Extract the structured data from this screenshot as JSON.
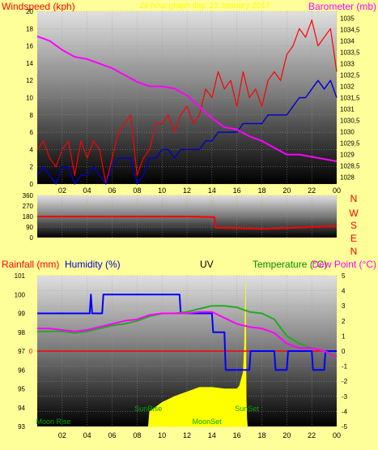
{
  "colors": {
    "background": "#ffff99",
    "wind_speed": "#ff0000",
    "wind_avg": "#0000cc",
    "barometer": "#ff00ff",
    "direction": "#ff0000",
    "humidity": "#0000ff",
    "temperature": "#22aa22",
    "dew_point": "#ff00ff",
    "uv": "#ffff00",
    "rainfall": "#ff0000",
    "label_green": "#00aa00",
    "title_text": "#ffff00"
  },
  "header_panel1": {
    "windspeed_label": "Windspeed (kph)",
    "title": "24 hour graph day: 21 January 2017",
    "barometer_label": "Barometer (mb)"
  },
  "header_panel3": {
    "rainfall_label": "Rainfall (mm)",
    "humidity_label": "Humidity (%)",
    "uv_label": "UV",
    "temperature_label": "Temperature (°C)",
    "dewpoint_label": "Dew Point (°C)"
  },
  "compass": [
    "N",
    "W",
    "S",
    "E",
    "N"
  ],
  "events": {
    "moon_rise": "Moon Rise",
    "sun_rise": "SunRise",
    "moon_set": "MoonSet",
    "sun_set": "SunSet"
  },
  "chart_data": [
    {
      "id": "wind-barometer",
      "type": "line",
      "x_tick_labels": [
        "02",
        "04",
        "06",
        "08",
        "10",
        "12",
        "14",
        "16",
        "18",
        "20",
        "22",
        "00"
      ],
      "x_hours": [
        2,
        4,
        6,
        8,
        10,
        12,
        14,
        16,
        18,
        20,
        22,
        24
      ],
      "x_range": [
        0,
        24
      ],
      "y_left": {
        "label": "Windspeed (kph)",
        "range": [
          0,
          20
        ],
        "ticks": [
          0,
          2,
          4,
          6,
          8,
          10,
          12,
          14,
          16,
          18,
          20
        ]
      },
      "y_right": {
        "label": "Barometer (mb)",
        "range": [
          1027.7,
          1035.3
        ],
        "ticks": [
          "1028",
          "1028,5",
          "1029",
          "1029,5",
          "1030",
          "1030,5",
          "1031",
          "1031,5",
          "1032",
          "1032,5",
          "1033",
          "1033,5",
          "1034",
          "1034,5",
          "1035"
        ]
      },
      "barometer": {
        "x": [
          0,
          1,
          2,
          3,
          4,
          5,
          6,
          7,
          8,
          9,
          10,
          11,
          12,
          13,
          14,
          15,
          16,
          17,
          18,
          19,
          20,
          21,
          22,
          23,
          24
        ],
        "y": [
          1034.2,
          1034.0,
          1033.6,
          1033.3,
          1033.2,
          1033.0,
          1032.8,
          1032.5,
          1032.2,
          1032.0,
          1032.0,
          1031.9,
          1031.6,
          1031.1,
          1030.6,
          1030.2,
          1030.1,
          1029.8,
          1029.6,
          1029.3,
          1029.0,
          1029.0,
          1028.9,
          1028.8,
          1028.7
        ]
      },
      "wind_gust": {
        "x": [
          0,
          0.5,
          1,
          1.5,
          2,
          2.5,
          3,
          3.5,
          4,
          4.5,
          5,
          5.5,
          6,
          6.5,
          7,
          7.5,
          8,
          8.5,
          9,
          9.5,
          10,
          10.5,
          11,
          11.5,
          12,
          12.5,
          13,
          13.5,
          14,
          14.5,
          15,
          15.5,
          16,
          16.5,
          17,
          17.5,
          18,
          18.5,
          19,
          19.5,
          20,
          20.5,
          21,
          21.5,
          22,
          22.5,
          23,
          23.5,
          24
        ],
        "y": [
          4,
          5,
          3,
          2,
          4,
          5,
          1,
          5,
          3,
          5,
          4,
          0,
          3,
          6,
          7,
          8,
          1,
          3,
          4,
          7,
          7,
          8,
          6,
          8,
          9,
          7,
          8,
          11,
          10,
          13,
          11,
          12,
          9,
          13,
          10,
          11,
          9,
          12,
          13,
          12,
          15,
          16,
          18,
          17,
          19,
          16,
          17,
          18,
          13
        ]
      },
      "wind_average": {
        "x": [
          0,
          0.5,
          1,
          1.5,
          2,
          2.5,
          3,
          3.5,
          4,
          4.5,
          5,
          5.5,
          6,
          6.5,
          7,
          7.5,
          8,
          8.5,
          9,
          9.5,
          10,
          10.5,
          11,
          11.5,
          12,
          12.5,
          13,
          13.5,
          14,
          14.5,
          15,
          15.5,
          16,
          16.5,
          17,
          17.5,
          18,
          18.5,
          19,
          19.5,
          20,
          20.5,
          21,
          21.5,
          22,
          22.5,
          23,
          23.5,
          24
        ],
        "y": [
          1,
          2,
          1,
          0,
          2,
          2,
          0,
          1,
          1,
          2,
          1,
          0,
          2,
          3,
          3,
          3,
          0,
          1,
          3,
          3,
          4,
          4,
          3,
          4,
          4,
          4,
          4,
          5,
          5,
          6,
          6,
          6,
          6,
          7,
          7,
          7,
          7,
          8,
          8,
          8,
          8,
          9,
          10,
          10,
          11,
          12,
          11,
          12,
          10
        ]
      }
    },
    {
      "id": "wind-direction",
      "type": "line",
      "x_tick_labels": [
        "02",
        "04",
        "06",
        "08",
        "10",
        "12",
        "14",
        "16",
        "18",
        "20",
        "22",
        "00"
      ],
      "x_range": [
        0,
        24
      ],
      "y_range": [
        0,
        360
      ],
      "y_ticks": [
        0,
        90,
        180,
        270,
        360
      ],
      "direction": {
        "x": [
          0,
          12,
          14.2,
          14.3,
          16,
          18,
          20,
          22,
          24
        ],
        "y": [
          180,
          180,
          175,
          85,
          80,
          75,
          80,
          90,
          100
        ]
      }
    },
    {
      "id": "humidity-temperature-uv",
      "type": "line",
      "x_tick_labels": [
        "02",
        "04",
        "06",
        "08",
        "10",
        "12",
        "14",
        "16",
        "18",
        "20",
        "22",
        "00"
      ],
      "x_range": [
        0,
        24
      ],
      "y_left": {
        "label": "Humidity (%)",
        "range": [
          93,
          101
        ],
        "ticks": [
          93,
          94,
          95,
          96,
          97,
          98,
          99,
          100,
          101
        ]
      },
      "y_right": {
        "label": "Temperature (°C)",
        "range": [
          -5,
          5
        ],
        "ticks": [
          -5,
          -4,
          -3,
          -2,
          -1,
          0,
          1,
          2,
          3,
          4,
          5
        ]
      },
      "rain_zero_label": "0",
      "humidity": {
        "x": [
          0,
          4.2,
          4.3,
          4.4,
          5.2,
          5.3,
          11.4,
          11.5,
          12,
          13,
          14,
          14.1,
          15,
          15.1,
          16,
          17,
          17.1,
          19,
          19.1,
          20,
          20.1,
          21,
          22,
          22.1,
          23,
          23.1,
          24
        ],
        "y": [
          99,
          99,
          100,
          99,
          99,
          100,
          100,
          99,
          99,
          99,
          99,
          98,
          98,
          96,
          96,
          96,
          97,
          97,
          96,
          96,
          97,
          97,
          97,
          96,
          96,
          97,
          97
        ]
      },
      "temperature": {
        "x": [
          0,
          1,
          2,
          3,
          4,
          5,
          6,
          7,
          8,
          9,
          10,
          11,
          12,
          13,
          14,
          15,
          16,
          17,
          18,
          19,
          20,
          21,
          22,
          23,
          24
        ],
        "y": [
          1.3,
          1.3,
          1.3,
          1.2,
          1.3,
          1.5,
          1.7,
          1.8,
          2.0,
          2.3,
          2.5,
          2.5,
          2.6,
          2.8,
          3.0,
          3.0,
          2.9,
          2.6,
          2.5,
          2.1,
          1.0,
          0.5,
          0.2,
          0.0,
          -0.3
        ]
      },
      "dew_point": {
        "x": [
          0,
          1,
          2,
          3,
          4,
          5,
          6,
          7,
          8,
          9,
          10,
          11,
          12,
          13,
          14,
          15,
          16,
          17,
          18,
          19,
          20,
          21,
          22,
          23,
          24
        ],
        "y": [
          1.5,
          1.5,
          1.4,
          1.3,
          1.4,
          1.6,
          1.8,
          2.0,
          2.1,
          2.4,
          2.5,
          2.5,
          2.5,
          2.6,
          2.6,
          2.2,
          1.8,
          1.6,
          1.5,
          1.2,
          0.5,
          0.2,
          0.2,
          0.0,
          -0.4
        ]
      },
      "uv": {
        "x": [
          8.9,
          9.0,
          10,
          11,
          12,
          13,
          14,
          15,
          16,
          16.2,
          16.5,
          16.6,
          16.7,
          16.75,
          16.8,
          16.85
        ],
        "y": [
          0,
          1.0,
          1.6,
          2.0,
          2.3,
          2.6,
          2.6,
          2.5,
          2.5,
          2.7,
          3.6,
          5.2,
          9.5,
          2.0,
          0.5,
          0
        ]
      },
      "rainfall": {
        "x": [
          0,
          24
        ],
        "y": [
          0,
          0
        ]
      },
      "events": [
        {
          "label": "Moon Rise",
          "hour": 1.3,
          "y_band": "bottom"
        },
        {
          "label": "SunRise",
          "hour": 8.9,
          "y_band": "low"
        },
        {
          "label": "MoonSet",
          "hour": 13.6,
          "y_band": "bottom"
        },
        {
          "label": "SunSet",
          "hour": 16.8,
          "y_band": "low"
        }
      ]
    }
  ]
}
